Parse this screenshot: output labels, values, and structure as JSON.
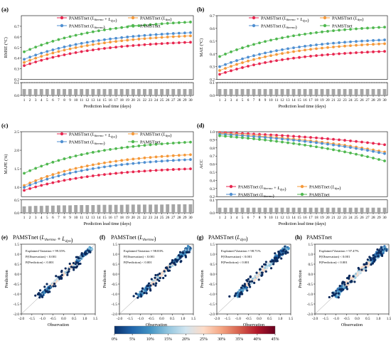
{
  "panel_tags": [
    "(a)",
    "(b)",
    "(c)",
    "(d)"
  ],
  "scatter_tags": [
    "(e)",
    "(f)",
    "(g)",
    "(h)"
  ],
  "legend_labels": [
    "PAMSTnet (L_thermo + L_dyn)",
    "PAMSTnet (L_dyn)",
    "PAMSTnet (L_thermo)",
    "PAMSTnet"
  ],
  "colors": {
    "thermo_dyn": "#e8264f",
    "dyn": "#f5993a",
    "thermo": "#4f8fd1",
    "plain": "#4fb84f",
    "bar": "#a6a6a6"
  },
  "chart_data": [
    {
      "id": "a",
      "type": "line",
      "ylabel": "RMSE (°C)",
      "xlabel": "Prediction lead time (days)",
      "x": [
        1,
        2,
        3,
        4,
        5,
        6,
        7,
        8,
        9,
        10,
        11,
        12,
        13,
        14,
        15,
        16,
        17,
        18,
        19,
        20,
        21,
        22,
        23,
        24,
        25,
        26,
        27,
        28,
        29,
        30
      ],
      "ylim": [
        0.0,
        0.8
      ],
      "yticks": [
        0.0,
        0.1,
        0.2,
        0.3,
        0.4,
        0.5,
        0.6,
        0.7
      ],
      "ybreak": [
        0.1,
        0.2
      ],
      "dashed_line": 0.1,
      "bars": [
        0.05,
        0.05,
        0.05,
        0.05,
        0.05,
        0.05,
        0.05,
        0.05,
        0.05,
        0.05,
        0.05,
        0.05,
        0.05,
        0.05,
        0.05,
        0.05,
        0.05,
        0.05,
        0.05,
        0.05,
        0.05,
        0.05,
        0.05,
        0.05,
        0.05,
        0.05,
        0.05,
        0.05,
        0.05,
        0.05
      ],
      "series": [
        {
          "key": "thermo_dyn",
          "start": 0.33,
          "end": 0.55
        },
        {
          "key": "dyn",
          "start": 0.36,
          "end": 0.61
        },
        {
          "key": "thermo",
          "start": 0.39,
          "end": 0.64
        },
        {
          "key": "plain",
          "start": 0.46,
          "end": 0.74
        }
      ]
    },
    {
      "id": "b",
      "type": "line",
      "ylabel": "MAE (°C)",
      "xlabel": "Prediction lead time (days)",
      "x": [
        1,
        2,
        3,
        4,
        5,
        6,
        7,
        8,
        9,
        10,
        11,
        12,
        13,
        14,
        15,
        16,
        17,
        18,
        19,
        20,
        21,
        22,
        23,
        24,
        25,
        26,
        27,
        28,
        29,
        30
      ],
      "ylim": [
        0.0,
        0.7
      ],
      "yticks": [
        0.0,
        0.1,
        0.2,
        0.3,
        0.4,
        0.5,
        0.6,
        0.7
      ],
      "ybreak": [
        0.1,
        0.2
      ],
      "dashed_line": 0.1,
      "bars": [
        0.05,
        0.05,
        0.05,
        0.05,
        0.05,
        0.05,
        0.05,
        0.05,
        0.05,
        0.05,
        0.05,
        0.05,
        0.05,
        0.05,
        0.05,
        0.05,
        0.05,
        0.05,
        0.05,
        0.05,
        0.05,
        0.05,
        0.05,
        0.05,
        0.05,
        0.05,
        0.05,
        0.05,
        0.05,
        0.05
      ],
      "series": [
        {
          "key": "thermo_dyn",
          "start": 0.24,
          "end": 0.42
        },
        {
          "key": "dyn",
          "start": 0.27,
          "end": 0.48
        },
        {
          "key": "thermo",
          "start": 0.3,
          "end": 0.51
        },
        {
          "key": "plain",
          "start": 0.38,
          "end": 0.61
        }
      ]
    },
    {
      "id": "c",
      "type": "line",
      "ylabel": "MAPE (%)",
      "xlabel": "Prediction lead time (days)",
      "x": [
        1,
        2,
        3,
        4,
        5,
        6,
        7,
        8,
        9,
        10,
        11,
        12,
        13,
        14,
        15,
        16,
        17,
        18,
        19,
        20,
        21,
        22,
        23,
        24,
        25,
        26,
        27,
        28,
        29,
        30
      ],
      "ylim": [
        0.0,
        2.5
      ],
      "yticks": [
        0.0,
        0.5,
        1.0,
        1.5,
        2.0,
        2.5
      ],
      "ybreak": [
        0.5,
        0.75
      ],
      "dashed_line": 0.5,
      "bars": [
        0.25,
        0.26,
        0.27,
        0.27,
        0.28,
        0.28,
        0.29,
        0.29,
        0.29,
        0.3,
        0.3,
        0.3,
        0.3,
        0.31,
        0.31,
        0.31,
        0.31,
        0.31,
        0.32,
        0.32,
        0.32,
        0.32,
        0.32,
        0.32,
        0.32,
        0.33,
        0.33,
        0.33,
        0.33,
        0.33
      ],
      "series": [
        {
          "key": "thermo_dyn",
          "start": 0.92,
          "end": 1.5
        },
        {
          "key": "dyn",
          "start": 1.05,
          "end": 1.88
        },
        {
          "key": "thermo",
          "start": 1.0,
          "end": 1.75
        },
        {
          "key": "plain",
          "start": 1.38,
          "end": 2.22
        }
      ]
    },
    {
      "id": "d",
      "type": "line",
      "ylabel": "ACC",
      "xlabel": "Prediction lead time (days)",
      "x": [
        1,
        2,
        3,
        4,
        5,
        6,
        7,
        8,
        9,
        10,
        11,
        12,
        13,
        14,
        15,
        16,
        17,
        18,
        19,
        20,
        21,
        22,
        23,
        24,
        25,
        26,
        27,
        28,
        29,
        30
      ],
      "ylim": [
        0.0,
        1.0
      ],
      "yticks": [
        0.0,
        0.1,
        0.2,
        0.3,
        0.4,
        0.5,
        0.6,
        0.7,
        0.8,
        0.9,
        1.0
      ],
      "ybreak": [
        0.1,
        0.2
      ],
      "dashed_line": 0.1,
      "bars": [
        0.04,
        0.04,
        0.04,
        0.04,
        0.04,
        0.04,
        0.04,
        0.04,
        0.04,
        0.04,
        0.04,
        0.04,
        0.04,
        0.04,
        0.04,
        0.04,
        0.04,
        0.04,
        0.04,
        0.04,
        0.04,
        0.04,
        0.04,
        0.04,
        0.04,
        0.04,
        0.04,
        0.04,
        0.04,
        0.04
      ],
      "series": [
        {
          "key": "thermo_dyn",
          "start": 0.99,
          "end": 0.84
        },
        {
          "key": "dyn",
          "start": 0.98,
          "end": 0.75
        },
        {
          "key": "thermo",
          "start": 0.97,
          "end": 0.73
        },
        {
          "key": "plain",
          "start": 0.95,
          "end": 0.64
        }
      ]
    },
    {
      "id": "e",
      "type": "scatter",
      "title": "PAMSTnet (L_thermo + L_dyn)",
      "xlabel": "Observation",
      "ylabel": "Prediction",
      "xlim": [
        -2.0,
        1.5
      ],
      "ylim": [
        -2.0,
        1.5
      ],
      "ticks": [
        -2.0,
        -1.5,
        -1.0,
        -0.5,
        0.0,
        0.5,
        1.0,
        1.5
      ],
      "annotations": [
        "Explained Variation = 99.35%",
        "P(Observation) < 0.001",
        "P(Prediction) < 0.001"
      ]
    },
    {
      "id": "f",
      "type": "scatter",
      "title": "PAMSTnet (L_thermo)",
      "xlabel": "Observation",
      "ylabel": "Prediction",
      "xlim": [
        -2.0,
        1.5
      ],
      "ylim": [
        -2.0,
        1.5
      ],
      "ticks": [
        -2.0,
        -1.5,
        -1.0,
        -0.5,
        0.0,
        0.5,
        1.0,
        1.5
      ],
      "annotations": [
        "Explained Variation = 98.83%",
        "P(Observation) < 0.001",
        "P(Prediction) < 0.001"
      ]
    },
    {
      "id": "g",
      "type": "scatter",
      "title": "PAMSTnet (L_dyn)",
      "xlabel": "Observation",
      "ylabel": "Prediction",
      "xlim": [
        -2.0,
        1.5
      ],
      "ylim": [
        -2.0,
        1.5
      ],
      "ticks": [
        -2.0,
        -1.5,
        -1.0,
        -0.5,
        0.0,
        0.5,
        1.0,
        1.5
      ],
      "annotations": [
        "Explained Variation = 98.71%",
        "P(Observation) < 0.001",
        "P(Prediction) < 0.001"
      ]
    },
    {
      "id": "h",
      "type": "scatter",
      "title": "PAMSTnet",
      "xlabel": "Observation",
      "ylabel": "Prediction",
      "xlim": [
        -2.0,
        1.5
      ],
      "ylim": [
        -2.0,
        1.5
      ],
      "ticks": [
        -2.0,
        -1.5,
        -1.0,
        -0.5,
        0.0,
        0.5,
        1.0,
        1.5
      ],
      "annotations": [
        "Explained Variation = 97.47%",
        "P(Observation) < 0.001",
        "P(Prediction) < 0.001"
      ]
    }
  ],
  "colorbar": {
    "ticks": [
      "0%",
      "5%",
      "10%",
      "15%",
      "20%",
      "25%",
      "30%",
      "35%",
      "40%",
      "45%"
    ],
    "stops": [
      "#08306b",
      "#2166ac",
      "#4393c3",
      "#92c5de",
      "#d1e5f0",
      "#fddbc7",
      "#f4a582",
      "#d6604d",
      "#b2182b",
      "#67001f"
    ]
  }
}
